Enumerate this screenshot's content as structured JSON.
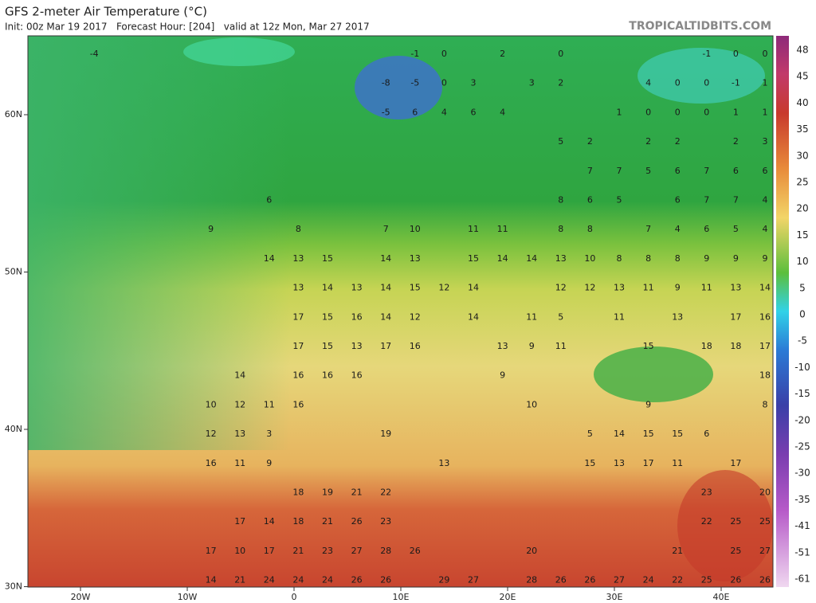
{
  "header": {
    "title": "GFS 2-meter Air Temperature (°C)",
    "subtitle": "Init: 00z Mar 19 2017   Forecast Hour: [204]   valid at 12z Mon, Mar 27 2017",
    "brand": "TROPICALTIDBITS.COM"
  },
  "map": {
    "lat_labels": [
      "60N",
      "50N",
      "40N",
      "30N"
    ],
    "lon_labels": [
      "20W",
      "10W",
      "0",
      "10E",
      "20E",
      "30E",
      "40E"
    ],
    "colorbar_ticks": [
      48,
      45,
      40,
      35,
      30,
      25,
      20,
      15,
      10,
      5,
      0,
      -5,
      -10,
      -15,
      -20,
      -25,
      -30,
      -35,
      -41,
      -51,
      -61
    ],
    "grid": [
      [
        null,
        null,
        -4,
        null,
        null,
        null,
        null,
        null,
        null,
        null,
        null,
        null,
        null,
        -1,
        0,
        null,
        2,
        null,
        0,
        null,
        null,
        null,
        null,
        -1,
        0,
        0
      ],
      [
        null,
        null,
        null,
        null,
        null,
        null,
        null,
        null,
        null,
        null,
        null,
        null,
        -8,
        -5,
        0,
        3,
        null,
        3,
        2,
        null,
        null,
        4,
        0,
        0,
        -1,
        1
      ],
      [
        null,
        null,
        null,
        null,
        null,
        null,
        null,
        null,
        null,
        null,
        null,
        null,
        -5,
        6,
        4,
        6,
        4,
        null,
        null,
        null,
        1,
        0,
        0,
        0,
        1,
        1
      ],
      [
        null,
        null,
        null,
        null,
        null,
        null,
        null,
        null,
        null,
        null,
        null,
        null,
        null,
        null,
        null,
        null,
        null,
        null,
        5,
        2,
        null,
        2,
        2,
        null,
        2,
        3
      ],
      [
        null,
        null,
        null,
        null,
        null,
        null,
        null,
        null,
        null,
        null,
        null,
        null,
        null,
        null,
        null,
        null,
        null,
        null,
        null,
        7,
        7,
        5,
        6,
        7,
        6,
        6
      ],
      [
        null,
        null,
        null,
        null,
        null,
        null,
        null,
        null,
        6,
        null,
        null,
        null,
        null,
        null,
        null,
        null,
        null,
        null,
        8,
        6,
        5,
        null,
        6,
        7,
        7,
        4
      ],
      [
        null,
        null,
        null,
        null,
        null,
        null,
        9,
        null,
        null,
        8,
        null,
        null,
        7,
        10,
        null,
        11,
        11,
        null,
        8,
        8,
        null,
        7,
        4,
        6,
        5,
        4
      ],
      [
        null,
        null,
        null,
        null,
        null,
        null,
        null,
        null,
        14,
        13,
        15,
        null,
        14,
        13,
        null,
        15,
        14,
        14,
        13,
        10,
        8,
        8,
        8,
        9,
        9,
        9
      ],
      [
        null,
        null,
        null,
        null,
        null,
        null,
        null,
        null,
        null,
        13,
        14,
        13,
        14,
        15,
        12,
        14,
        null,
        null,
        12,
        12,
        13,
        11,
        9,
        11,
        13,
        14
      ],
      [
        null,
        null,
        null,
        null,
        null,
        null,
        null,
        null,
        null,
        17,
        15,
        16,
        14,
        12,
        null,
        14,
        null,
        11,
        5,
        null,
        11,
        null,
        13,
        null,
        17,
        16
      ],
      [
        null,
        null,
        null,
        null,
        null,
        null,
        null,
        null,
        null,
        17,
        15,
        13,
        17,
        16,
        null,
        null,
        13,
        9,
        11,
        null,
        null,
        15,
        null,
        18,
        18,
        17
      ],
      [
        null,
        null,
        null,
        null,
        null,
        null,
        null,
        14,
        null,
        16,
        16,
        16,
        null,
        null,
        null,
        null,
        9,
        null,
        null,
        null,
        null,
        null,
        null,
        null,
        null,
        18
      ],
      [
        null,
        null,
        null,
        null,
        null,
        null,
        10,
        12,
        11,
        16,
        null,
        null,
        null,
        null,
        null,
        null,
        null,
        10,
        null,
        null,
        null,
        9,
        null,
        null,
        null,
        8
      ],
      [
        null,
        null,
        null,
        null,
        null,
        null,
        12,
        13,
        3,
        null,
        null,
        null,
        19,
        null,
        null,
        null,
        null,
        null,
        null,
        5,
        14,
        15,
        15,
        6,
        null,
        null
      ],
      [
        null,
        null,
        null,
        null,
        null,
        null,
        16,
        11,
        9,
        null,
        null,
        null,
        null,
        null,
        13,
        null,
        null,
        null,
        null,
        15,
        13,
        17,
        11,
        null,
        17,
        null
      ],
      [
        null,
        null,
        null,
        null,
        null,
        null,
        null,
        null,
        null,
        18,
        19,
        21,
        22,
        null,
        null,
        null,
        null,
        null,
        null,
        null,
        null,
        null,
        null,
        23,
        null,
        20
      ],
      [
        null,
        null,
        null,
        null,
        null,
        null,
        null,
        17,
        14,
        18,
        21,
        26,
        23,
        null,
        null,
        null,
        null,
        null,
        null,
        null,
        null,
        null,
        null,
        22,
        25,
        25
      ],
      [
        null,
        null,
        null,
        null,
        null,
        null,
        17,
        10,
        17,
        21,
        23,
        27,
        28,
        26,
        null,
        null,
        null,
        20,
        null,
        null,
        null,
        null,
        21,
        null,
        25,
        27
      ],
      [
        null,
        null,
        null,
        null,
        null,
        null,
        14,
        21,
        24,
        24,
        24,
        26,
        26,
        null,
        29,
        27,
        null,
        28,
        26,
        26,
        27,
        24,
        22,
        25,
        26,
        26
      ]
    ]
  }
}
